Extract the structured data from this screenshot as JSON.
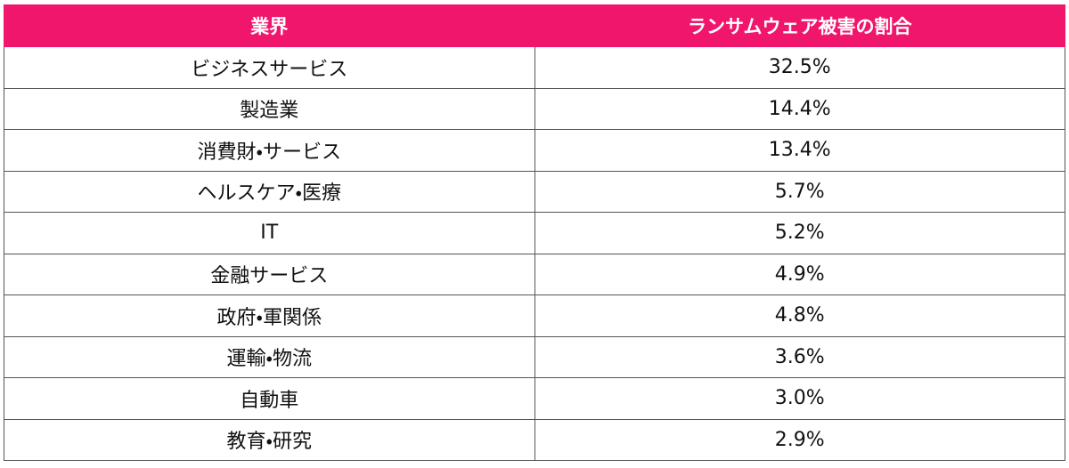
{
  "table": {
    "header": [
      "業界",
      "ランサムウェア被害の割合"
    ],
    "rows": [
      [
        "ビジネスサービス",
        "32.5%"
      ],
      [
        "製造業",
        "14.4%"
      ],
      [
        "消費財・サービス",
        "13.4%"
      ],
      [
        "ヘルスケア・医療",
        "5.7%"
      ],
      [
        "IT",
        "5.2%"
      ],
      [
        "金融サービス",
        "4.9%"
      ],
      [
        "政府・軍関係",
        "4.8%"
      ],
      [
        "運輸・物流",
        "3.6%"
      ],
      [
        "自動車",
        "3.0%"
      ],
      [
        "教育・研究",
        "2.9%"
      ]
    ]
  }
}
